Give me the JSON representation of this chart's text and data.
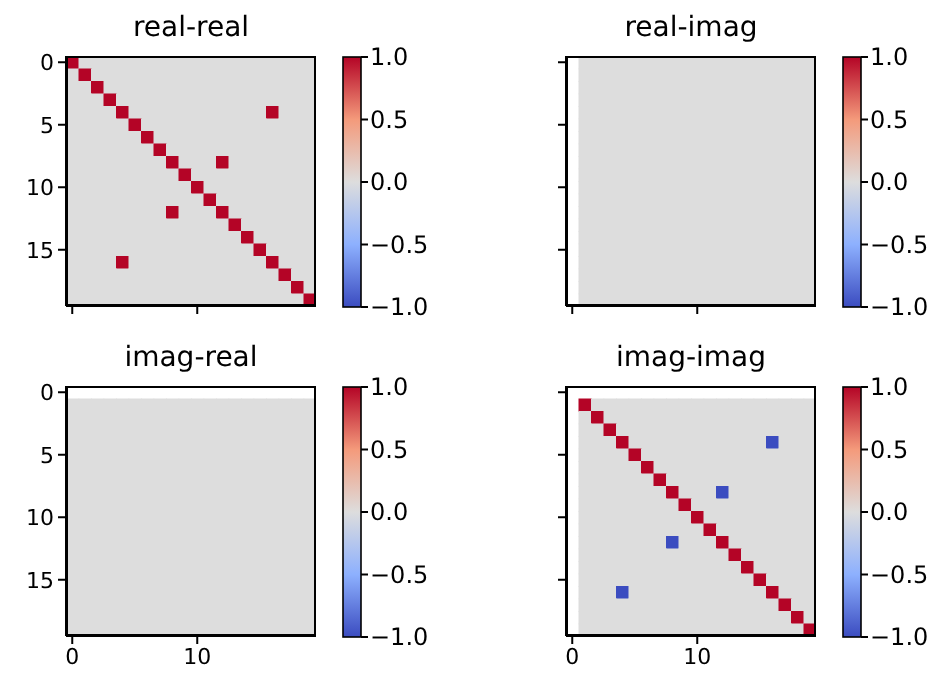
{
  "chart_data": [
    {
      "type": "heatmap",
      "title": "real-real",
      "tick_labels": "y",
      "categories": [
        "0",
        null,
        null,
        null,
        null,
        null,
        null,
        null,
        null,
        null,
        "10",
        null,
        null,
        null,
        null,
        null,
        null,
        null,
        null,
        null
      ],
      "y_categories": [
        "0",
        null,
        null,
        null,
        null,
        "5",
        null,
        null,
        null,
        null,
        "10",
        null,
        null,
        null,
        null,
        "15",
        null,
        null,
        null,
        null
      ],
      "clim": [
        -1,
        1
      ],
      "cticks": [
        {
          "value": -1,
          "label": "−1.0"
        },
        {
          "value": -0.5,
          "label": "−0.5"
        },
        {
          "value": 0,
          "label": "0.0"
        },
        {
          "value": 0.5,
          "label": "0.5"
        },
        {
          "value": 1,
          "label": "1.0"
        }
      ],
      "cells": [
        [
          1,
          0,
          0,
          0,
          0,
          0,
          0,
          0,
          0,
          0,
          0,
          0,
          0,
          0,
          0,
          0,
          0,
          0,
          0,
          0
        ],
        [
          0,
          1,
          0,
          0,
          0,
          0,
          0,
          0,
          0,
          0,
          0,
          0,
          0,
          0,
          0,
          0,
          0,
          0,
          0,
          0
        ],
        [
          0,
          0,
          1,
          0,
          0,
          0,
          0,
          0,
          0,
          0,
          0,
          0,
          0,
          0,
          0,
          0,
          0,
          0,
          0,
          0
        ],
        [
          0,
          0,
          0,
          1,
          0,
          0,
          0,
          0,
          0,
          0,
          0,
          0,
          0,
          0,
          0,
          0,
          0,
          0,
          0,
          0
        ],
        [
          0,
          0,
          0,
          0,
          1,
          0,
          0,
          0,
          0,
          0,
          0,
          0,
          0,
          0,
          0,
          0,
          1,
          0,
          0,
          0
        ],
        [
          0,
          0,
          0,
          0,
          0,
          1,
          0,
          0,
          0,
          0,
          0,
          0,
          0,
          0,
          0,
          0,
          0,
          0,
          0,
          0
        ],
        [
          0,
          0,
          0,
          0,
          0,
          0,
          1,
          0,
          0,
          0,
          0,
          0,
          0,
          0,
          0,
          0,
          0,
          0,
          0,
          0
        ],
        [
          0,
          0,
          0,
          0,
          0,
          0,
          0,
          1,
          0,
          0,
          0,
          0,
          0,
          0,
          0,
          0,
          0,
          0,
          0,
          0
        ],
        [
          0,
          0,
          0,
          0,
          0,
          0,
          0,
          0,
          1,
          0,
          0,
          0,
          1,
          0,
          0,
          0,
          0,
          0,
          0,
          0
        ],
        [
          0,
          0,
          0,
          0,
          0,
          0,
          0,
          0,
          0,
          1,
          0,
          0,
          0,
          0,
          0,
          0,
          0,
          0,
          0,
          0
        ],
        [
          0,
          0,
          0,
          0,
          0,
          0,
          0,
          0,
          0,
          0,
          1,
          0,
          0,
          0,
          0,
          0,
          0,
          0,
          0,
          0
        ],
        [
          0,
          0,
          0,
          0,
          0,
          0,
          0,
          0,
          0,
          0,
          0,
          1,
          0,
          0,
          0,
          0,
          0,
          0,
          0,
          0
        ],
        [
          0,
          0,
          0,
          0,
          0,
          0,
          0,
          0,
          1,
          0,
          0,
          0,
          1,
          0,
          0,
          0,
          0,
          0,
          0,
          0
        ],
        [
          0,
          0,
          0,
          0,
          0,
          0,
          0,
          0,
          0,
          0,
          0,
          0,
          0,
          1,
          0,
          0,
          0,
          0,
          0,
          0
        ],
        [
          0,
          0,
          0,
          0,
          0,
          0,
          0,
          0,
          0,
          0,
          0,
          0,
          0,
          0,
          1,
          0,
          0,
          0,
          0,
          0
        ],
        [
          0,
          0,
          0,
          0,
          0,
          0,
          0,
          0,
          0,
          0,
          0,
          0,
          0,
          0,
          0,
          1,
          0,
          0,
          0,
          0
        ],
        [
          0,
          0,
          0,
          0,
          1,
          0,
          0,
          0,
          0,
          0,
          0,
          0,
          0,
          0,
          0,
          0,
          1,
          0,
          0,
          0
        ],
        [
          0,
          0,
          0,
          0,
          0,
          0,
          0,
          0,
          0,
          0,
          0,
          0,
          0,
          0,
          0,
          0,
          0,
          1,
          0,
          0
        ],
        [
          0,
          0,
          0,
          0,
          0,
          0,
          0,
          0,
          0,
          0,
          0,
          0,
          0,
          0,
          0,
          0,
          0,
          0,
          1,
          0
        ],
        [
          0,
          0,
          0,
          0,
          0,
          0,
          0,
          0,
          0,
          0,
          0,
          0,
          0,
          0,
          0,
          0,
          0,
          0,
          0,
          1
        ]
      ]
    },
    {
      "type": "heatmap",
      "title": "real-imag",
      "tick_labels": false,
      "categories": [
        "0",
        null,
        null,
        null,
        null,
        null,
        null,
        null,
        null,
        null,
        "10",
        null,
        null,
        null,
        null,
        null,
        null,
        null,
        null,
        null
      ],
      "y_categories": [
        "0",
        null,
        null,
        null,
        null,
        "5",
        null,
        null,
        null,
        null,
        "10",
        null,
        null,
        null,
        null,
        "15",
        null,
        null,
        null,
        null
      ],
      "clim": [
        -1,
        1
      ],
      "cticks": [
        {
          "value": -1,
          "label": "−1.0"
        },
        {
          "value": -0.5,
          "label": "−0.5"
        },
        {
          "value": 0,
          "label": "0.0"
        },
        {
          "value": 0.5,
          "label": "0.5"
        },
        {
          "value": 1,
          "label": "1.0"
        }
      ],
      "cells": [
        [
          null,
          0,
          0,
          0,
          0,
          0,
          0,
          0,
          0,
          0,
          0,
          0,
          0,
          0,
          0,
          0,
          0,
          0,
          0,
          0
        ],
        [
          null,
          0,
          0,
          0,
          0,
          0,
          0,
          0,
          0,
          0,
          0,
          0,
          0,
          0,
          0,
          0,
          0,
          0,
          0,
          0
        ],
        [
          null,
          0,
          0,
          0,
          0,
          0,
          0,
          0,
          0,
          0,
          0,
          0,
          0,
          0,
          0,
          0,
          0,
          0,
          0,
          0
        ],
        [
          null,
          0,
          0,
          0,
          0,
          0,
          0,
          0,
          0,
          0,
          0,
          0,
          0,
          0,
          0,
          0,
          0,
          0,
          0,
          0
        ],
        [
          null,
          0,
          0,
          0,
          0,
          0,
          0,
          0,
          0,
          0,
          0,
          0,
          0,
          0,
          0,
          0,
          0,
          0,
          0,
          0
        ],
        [
          null,
          0,
          0,
          0,
          0,
          0,
          0,
          0,
          0,
          0,
          0,
          0,
          0,
          0,
          0,
          0,
          0,
          0,
          0,
          0
        ],
        [
          null,
          0,
          0,
          0,
          0,
          0,
          0,
          0,
          0,
          0,
          0,
          0,
          0,
          0,
          0,
          0,
          0,
          0,
          0,
          0
        ],
        [
          null,
          0,
          0,
          0,
          0,
          0,
          0,
          0,
          0,
          0,
          0,
          0,
          0,
          0,
          0,
          0,
          0,
          0,
          0,
          0
        ],
        [
          null,
          0,
          0,
          0,
          0,
          0,
          0,
          0,
          0,
          0,
          0,
          0,
          0,
          0,
          0,
          0,
          0,
          0,
          0,
          0
        ],
        [
          null,
          0,
          0,
          0,
          0,
          0,
          0,
          0,
          0,
          0,
          0,
          0,
          0,
          0,
          0,
          0,
          0,
          0,
          0,
          0
        ],
        [
          null,
          0,
          0,
          0,
          0,
          0,
          0,
          0,
          0,
          0,
          0,
          0,
          0,
          0,
          0,
          0,
          0,
          0,
          0,
          0
        ],
        [
          null,
          0,
          0,
          0,
          0,
          0,
          0,
          0,
          0,
          0,
          0,
          0,
          0,
          0,
          0,
          0,
          0,
          0,
          0,
          0
        ],
        [
          null,
          0,
          0,
          0,
          0,
          0,
          0,
          0,
          0,
          0,
          0,
          0,
          0,
          0,
          0,
          0,
          0,
          0,
          0,
          0
        ],
        [
          null,
          0,
          0,
          0,
          0,
          0,
          0,
          0,
          0,
          0,
          0,
          0,
          0,
          0,
          0,
          0,
          0,
          0,
          0,
          0
        ],
        [
          null,
          0,
          0,
          0,
          0,
          0,
          0,
          0,
          0,
          0,
          0,
          0,
          0,
          0,
          0,
          0,
          0,
          0,
          0,
          0
        ],
        [
          null,
          0,
          0,
          0,
          0,
          0,
          0,
          0,
          0,
          0,
          0,
          0,
          0,
          0,
          0,
          0,
          0,
          0,
          0,
          0
        ],
        [
          null,
          0,
          0,
          0,
          0,
          0,
          0,
          0,
          0,
          0,
          0,
          0,
          0,
          0,
          0,
          0,
          0,
          0,
          0,
          0
        ],
        [
          null,
          0,
          0,
          0,
          0,
          0,
          0,
          0,
          0,
          0,
          0,
          0,
          0,
          0,
          0,
          0,
          0,
          0,
          0,
          0
        ],
        [
          null,
          0,
          0,
          0,
          0,
          0,
          0,
          0,
          0,
          0,
          0,
          0,
          0,
          0,
          0,
          0,
          0,
          0,
          0,
          0
        ],
        [
          null,
          0,
          0,
          0,
          0,
          0,
          0,
          0,
          0,
          0,
          0,
          0,
          0,
          0,
          0,
          0,
          0,
          0,
          0,
          0
        ]
      ]
    },
    {
      "type": "heatmap",
      "title": "imag-real",
      "categories": [
        "0",
        null,
        null,
        null,
        null,
        null,
        null,
        null,
        null,
        null,
        "10",
        null,
        null,
        null,
        null,
        null,
        null,
        null,
        null,
        null
      ],
      "y_categories": [
        "0",
        null,
        null,
        null,
        null,
        "5",
        null,
        null,
        null,
        null,
        "10",
        null,
        null,
        null,
        null,
        "15",
        null,
        null,
        null,
        null
      ],
      "clim": [
        -1,
        1
      ],
      "cticks": [
        {
          "value": -1,
          "label": "−1.0"
        },
        {
          "value": -0.5,
          "label": "−0.5"
        },
        {
          "value": 0,
          "label": "0.0"
        },
        {
          "value": 0.5,
          "label": "0.5"
        },
        {
          "value": 1,
          "label": "1.0"
        }
      ],
      "cells": [
        [
          null,
          null,
          null,
          null,
          null,
          null,
          null,
          null,
          null,
          null,
          null,
          null,
          null,
          null,
          null,
          null,
          null,
          null,
          null,
          null
        ],
        [
          0,
          0,
          0,
          0,
          0,
          0,
          0,
          0,
          0,
          0,
          0,
          0,
          0,
          0,
          0,
          0,
          0,
          0,
          0,
          0
        ],
        [
          0,
          0,
          0,
          0,
          0,
          0,
          0,
          0,
          0,
          0,
          0,
          0,
          0,
          0,
          0,
          0,
          0,
          0,
          0,
          0
        ],
        [
          0,
          0,
          0,
          0,
          0,
          0,
          0,
          0,
          0,
          0,
          0,
          0,
          0,
          0,
          0,
          0,
          0,
          0,
          0,
          0
        ],
        [
          0,
          0,
          0,
          0,
          0,
          0,
          0,
          0,
          0,
          0,
          0,
          0,
          0,
          0,
          0,
          0,
          0,
          0,
          0,
          0
        ],
        [
          0,
          0,
          0,
          0,
          0,
          0,
          0,
          0,
          0,
          0,
          0,
          0,
          0,
          0,
          0,
          0,
          0,
          0,
          0,
          0
        ],
        [
          0,
          0,
          0,
          0,
          0,
          0,
          0,
          0,
          0,
          0,
          0,
          0,
          0,
          0,
          0,
          0,
          0,
          0,
          0,
          0
        ],
        [
          0,
          0,
          0,
          0,
          0,
          0,
          0,
          0,
          0,
          0,
          0,
          0,
          0,
          0,
          0,
          0,
          0,
          0,
          0,
          0
        ],
        [
          0,
          0,
          0,
          0,
          0,
          0,
          0,
          0,
          0,
          0,
          0,
          0,
          0,
          0,
          0,
          0,
          0,
          0,
          0,
          0
        ],
        [
          0,
          0,
          0,
          0,
          0,
          0,
          0,
          0,
          0,
          0,
          0,
          0,
          0,
          0,
          0,
          0,
          0,
          0,
          0,
          0
        ],
        [
          0,
          0,
          0,
          0,
          0,
          0,
          0,
          0,
          0,
          0,
          0,
          0,
          0,
          0,
          0,
          0,
          0,
          0,
          0,
          0
        ],
        [
          0,
          0,
          0,
          0,
          0,
          0,
          0,
          0,
          0,
          0,
          0,
          0,
          0,
          0,
          0,
          0,
          0,
          0,
          0,
          0
        ],
        [
          0,
          0,
          0,
          0,
          0,
          0,
          0,
          0,
          0,
          0,
          0,
          0,
          0,
          0,
          0,
          0,
          0,
          0,
          0,
          0
        ],
        [
          0,
          0,
          0,
          0,
          0,
          0,
          0,
          0,
          0,
          0,
          0,
          0,
          0,
          0,
          0,
          0,
          0,
          0,
          0,
          0
        ],
        [
          0,
          0,
          0,
          0,
          0,
          0,
          0,
          0,
          0,
          0,
          0,
          0,
          0,
          0,
          0,
          0,
          0,
          0,
          0,
          0
        ],
        [
          0,
          0,
          0,
          0,
          0,
          0,
          0,
          0,
          0,
          0,
          0,
          0,
          0,
          0,
          0,
          0,
          0,
          0,
          0,
          0
        ],
        [
          0,
          0,
          0,
          0,
          0,
          0,
          0,
          0,
          0,
          0,
          0,
          0,
          0,
          0,
          0,
          0,
          0,
          0,
          0,
          0
        ],
        [
          0,
          0,
          0,
          0,
          0,
          0,
          0,
          0,
          0,
          0,
          0,
          0,
          0,
          0,
          0,
          0,
          0,
          0,
          0,
          0
        ],
        [
          0,
          0,
          0,
          0,
          0,
          0,
          0,
          0,
          0,
          0,
          0,
          0,
          0,
          0,
          0,
          0,
          0,
          0,
          0,
          0
        ],
        [
          0,
          0,
          0,
          0,
          0,
          0,
          0,
          0,
          0,
          0,
          0,
          0,
          0,
          0,
          0,
          0,
          0,
          0,
          0,
          0
        ]
      ]
    },
    {
      "type": "heatmap",
      "title": "imag-imag",
      "tick_labels": "x",
      "categories": [
        "0",
        null,
        null,
        null,
        null,
        null,
        null,
        null,
        null,
        null,
        "10",
        null,
        null,
        null,
        null,
        null,
        null,
        null,
        null,
        null
      ],
      "y_categories": [
        "0",
        null,
        null,
        null,
        null,
        "5",
        null,
        null,
        null,
        null,
        "10",
        null,
        null,
        null,
        null,
        "15",
        null,
        null,
        null,
        null
      ],
      "clim": [
        -1,
        1
      ],
      "cticks": [
        {
          "value": -1,
          "label": "−1.0"
        },
        {
          "value": -0.5,
          "label": "−0.5"
        },
        {
          "value": 0,
          "label": "0.0"
        },
        {
          "value": 0.5,
          "label": "0.5"
        },
        {
          "value": 1,
          "label": "1.0"
        }
      ],
      "cells": [
        [
          null,
          null,
          null,
          null,
          null,
          null,
          null,
          null,
          null,
          null,
          null,
          null,
          null,
          null,
          null,
          null,
          null,
          null,
          null,
          null
        ],
        [
          null,
          1,
          0,
          0,
          0,
          0,
          0,
          0,
          0,
          0,
          0,
          0,
          0,
          0,
          0,
          0,
          0,
          0,
          0,
          0
        ],
        [
          null,
          0,
          1,
          0,
          0,
          0,
          0,
          0,
          0,
          0,
          0,
          0,
          0,
          0,
          0,
          0,
          0,
          0,
          0,
          0
        ],
        [
          null,
          0,
          0,
          1,
          0,
          0,
          0,
          0,
          0,
          0,
          0,
          0,
          0,
          0,
          0,
          0,
          0,
          0,
          0,
          0
        ],
        [
          null,
          0,
          0,
          0,
          1,
          0,
          0,
          0,
          0,
          0,
          0,
          0,
          0,
          0,
          0,
          0,
          -1,
          0,
          0,
          0
        ],
        [
          null,
          0,
          0,
          0,
          0,
          1,
          0,
          0,
          0,
          0,
          0,
          0,
          0,
          0,
          0,
          0,
          0,
          0,
          0,
          0
        ],
        [
          null,
          0,
          0,
          0,
          0,
          0,
          1,
          0,
          0,
          0,
          0,
          0,
          0,
          0,
          0,
          0,
          0,
          0,
          0,
          0
        ],
        [
          null,
          0,
          0,
          0,
          0,
          0,
          0,
          1,
          0,
          0,
          0,
          0,
          0,
          0,
          0,
          0,
          0,
          0,
          0,
          0
        ],
        [
          null,
          0,
          0,
          0,
          0,
          0,
          0,
          0,
          1,
          0,
          0,
          0,
          -1,
          0,
          0,
          0,
          0,
          0,
          0,
          0
        ],
        [
          null,
          0,
          0,
          0,
          0,
          0,
          0,
          0,
          0,
          1,
          0,
          0,
          0,
          0,
          0,
          0,
          0,
          0,
          0,
          0
        ],
        [
          null,
          0,
          0,
          0,
          0,
          0,
          0,
          0,
          0,
          0,
          1,
          0,
          0,
          0,
          0,
          0,
          0,
          0,
          0,
          0
        ],
        [
          null,
          0,
          0,
          0,
          0,
          0,
          0,
          0,
          0,
          0,
          0,
          1,
          0,
          0,
          0,
          0,
          0,
          0,
          0,
          0
        ],
        [
          null,
          0,
          0,
          0,
          0,
          0,
          0,
          0,
          -1,
          0,
          0,
          0,
          1,
          0,
          0,
          0,
          0,
          0,
          0,
          0
        ],
        [
          null,
          0,
          0,
          0,
          0,
          0,
          0,
          0,
          0,
          0,
          0,
          0,
          0,
          1,
          0,
          0,
          0,
          0,
          0,
          0
        ],
        [
          null,
          0,
          0,
          0,
          0,
          0,
          0,
          0,
          0,
          0,
          0,
          0,
          0,
          0,
          1,
          0,
          0,
          0,
          0,
          0
        ],
        [
          null,
          0,
          0,
          0,
          0,
          0,
          0,
          0,
          0,
          0,
          0,
          0,
          0,
          0,
          0,
          1,
          0,
          0,
          0,
          0
        ],
        [
          null,
          0,
          0,
          0,
          -1,
          0,
          0,
          0,
          0,
          0,
          0,
          0,
          0,
          0,
          0,
          0,
          1,
          0,
          0,
          0
        ],
        [
          null,
          0,
          0,
          0,
          0,
          0,
          0,
          0,
          0,
          0,
          0,
          0,
          0,
          0,
          0,
          0,
          0,
          1,
          0,
          0
        ],
        [
          null,
          0,
          0,
          0,
          0,
          0,
          0,
          0,
          0,
          0,
          0,
          0,
          0,
          0,
          0,
          0,
          0,
          0,
          1,
          0
        ],
        [
          null,
          0,
          0,
          0,
          0,
          0,
          0,
          0,
          0,
          0,
          0,
          0,
          0,
          0,
          0,
          0,
          0,
          0,
          0,
          1
        ]
      ]
    }
  ]
}
